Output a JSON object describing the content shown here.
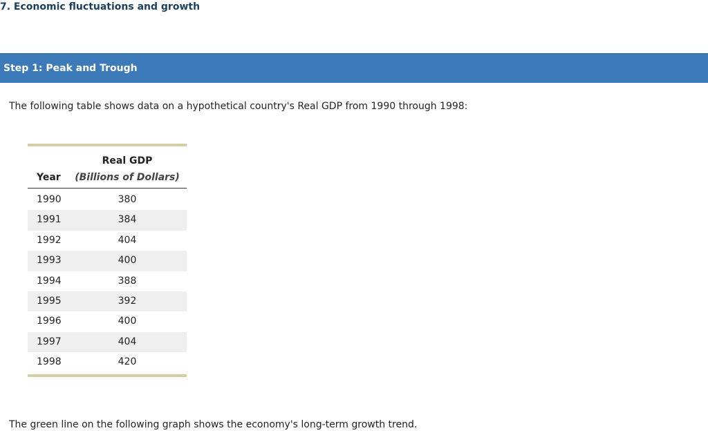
{
  "header": {
    "title": "7. Economic fluctuations and growth"
  },
  "step": {
    "title": "Step 1: Peak and Trough"
  },
  "intro": "The following table shows data on a hypothetical country's Real GDP from 1990 through 1998:",
  "table": {
    "columns": [
      {
        "label": "Year"
      },
      {
        "label": "Real GDP",
        "sublabel": "(Billions of Dollars)"
      }
    ],
    "rows": [
      [
        1990,
        380
      ],
      [
        1991,
        384
      ],
      [
        1992,
        404
      ],
      [
        1993,
        400
      ],
      [
        1994,
        388
      ],
      [
        1995,
        392
      ],
      [
        1996,
        400
      ],
      [
        1997,
        404
      ],
      [
        1998,
        420
      ]
    ]
  },
  "footer": "The green line on the following graph shows the economy's long-term growth trend."
}
